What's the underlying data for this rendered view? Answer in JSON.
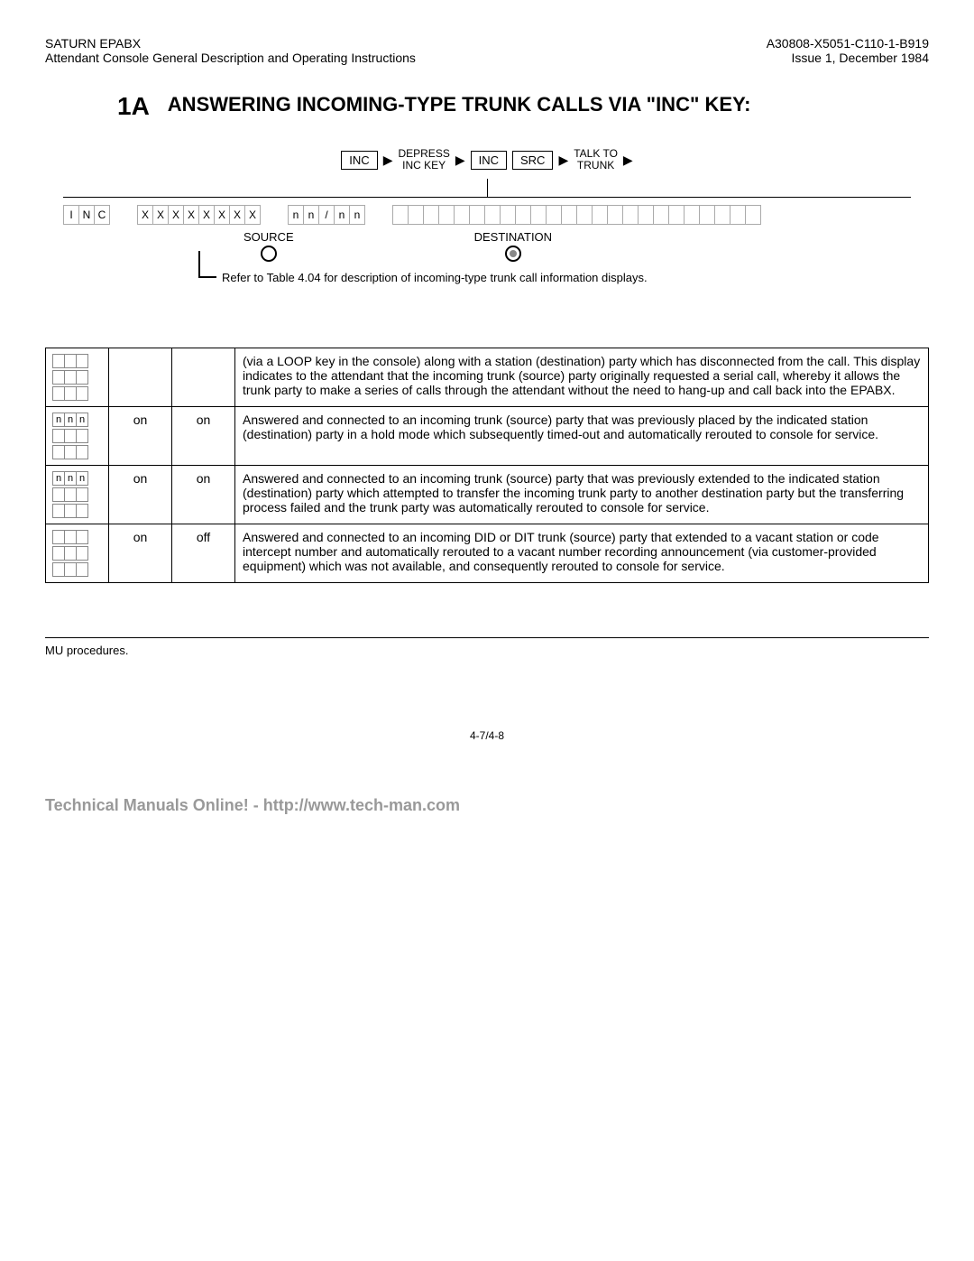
{
  "header": {
    "left_line1": "SATURN EPABX",
    "left_line2": "Attendant Console General Description and Operating Instructions",
    "right_line1": "A30808-X5051-C110-1-B919",
    "right_line2": "Issue 1, December 1984"
  },
  "title": {
    "num": "1A",
    "text": "ANSWERING INCOMING-TYPE TRUNK CALLS VIA \"INC\" KEY:"
  },
  "flow": {
    "box1": "INC",
    "step1_l1": "DEPRESS",
    "step1_l2": "INC KEY",
    "box2": "INC",
    "box3": "SRC",
    "step2_l1": "TALK TO",
    "step2_l2": "TRUNK"
  },
  "display": {
    "group1": [
      "I",
      "N",
      "C"
    ],
    "group2": [
      "X",
      "X",
      "X",
      "X",
      "X",
      "X",
      "X",
      "X"
    ],
    "group3": [
      "n",
      "n",
      "/",
      "n",
      "n"
    ],
    "source_label": "SOURCE",
    "dest_label": "DESTINATION",
    "note": "Refer to Table 4.04 for description of incoming-type trunk call information displays."
  },
  "table": {
    "rows": [
      {
        "mini": [
          "",
          "",
          ""
        ],
        "c1": "",
        "c2": "",
        "desc": "(via a LOOP key in the console) along with a station (destination) party which has disconnected from the call. This display indicates to the attendant that the incoming trunk (source) party originally requested a serial call, whereby it allows the trunk party to make a series of calls through the attendant without the need to hang-up and call back into the EPABX."
      },
      {
        "mini": [
          "n",
          "n",
          "n"
        ],
        "c1": "on",
        "c2": "on",
        "desc": "Answered and connected to an incoming trunk (source) party that was previously placed by the indicated station (destination) party in a hold mode which subsequently timed-out and automatically rerouted to console for service."
      },
      {
        "mini": [
          "n",
          "n",
          "n"
        ],
        "c1": "on",
        "c2": "on",
        "desc": "Answered and connected to an incoming trunk (source) party that was previously extended to the indicated station (destination) party which attempted to transfer the incoming trunk party to another destination party but the transferring process failed and the trunk party was automatically rerouted to console for service."
      },
      {
        "mini": [
          "",
          "",
          ""
        ],
        "c1": "on",
        "c2": "off",
        "desc": "Answered and connected to an incoming DID or DIT trunk (source) party that extended to a vacant station or code intercept number and automatically rerouted to a vacant number recording announcement (via customer-provided equipment) which was not available, and consequently rerouted to console for service."
      }
    ]
  },
  "footer": {
    "note": "MU procedures.",
    "page": "4-7/4-8",
    "watermark": "Technical Manuals Online! - http://www.tech-man.com"
  }
}
